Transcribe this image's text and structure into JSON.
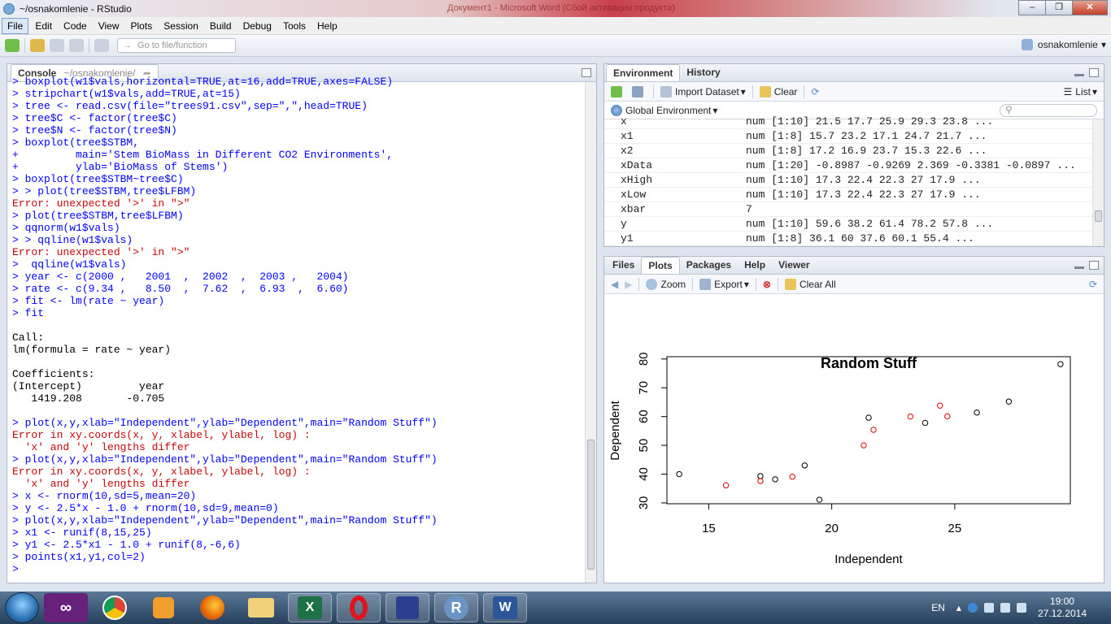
{
  "window": {
    "title": "~/osnakomlenie - RStudio",
    "ghost_title": "Документ1 - Microsoft Word (Сбой активации продукта)"
  },
  "menu": [
    "File",
    "Edit",
    "Code",
    "View",
    "Plots",
    "Session",
    "Build",
    "Debug",
    "Tools",
    "Help"
  ],
  "toolbar": {
    "goto_placeholder": "Go to file/function",
    "user": "osnakomlenie"
  },
  "console": {
    "tab_label": "Console",
    "path": "~/osnakomlenie/",
    "lines": [
      {
        "t": "> boxplot(w1$vals,horizontal=TRUE,at=16,add=TRUE,axes=FALSE)",
        "k": "in"
      },
      {
        "t": "> stripchart(w1$vals,add=TRUE,at=15)",
        "k": "in"
      },
      {
        "t": "> tree <- read.csv(file=\"trees91.csv\",sep=\",\",head=TRUE)",
        "k": "in"
      },
      {
        "t": "> tree$C <- factor(tree$C)",
        "k": "in"
      },
      {
        "t": "> tree$N <- factor(tree$N)",
        "k": "in"
      },
      {
        "t": "> boxplot(tree$STBM,",
        "k": "in"
      },
      {
        "t": "+         main='Stem BioMass in Different CO2 Environments',",
        "k": "in"
      },
      {
        "t": "+         ylab='BioMass of Stems')",
        "k": "in"
      },
      {
        "t": "> boxplot(tree$STBM~tree$C)",
        "k": "in"
      },
      {
        "t": "> > plot(tree$STBM,tree$LFBM)",
        "k": "in"
      },
      {
        "t": "Error: unexpected '>' in \">\"",
        "k": "err"
      },
      {
        "t": "> plot(tree$STBM,tree$LFBM)",
        "k": "in"
      },
      {
        "t": "> qqnorm(w1$vals)",
        "k": "in"
      },
      {
        "t": "> > qqline(w1$vals)",
        "k": "in"
      },
      {
        "t": "Error: unexpected '>' in \">\"",
        "k": "err"
      },
      {
        "t": ">  qqline(w1$vals)",
        "k": "in"
      },
      {
        "t": "> year <- c(2000 ,   2001  ,  2002  ,  2003 ,   2004)",
        "k": "in"
      },
      {
        "t": "> rate <- c(9.34 ,   8.50  ,  7.62  ,  6.93  ,  6.60)",
        "k": "in"
      },
      {
        "t": "> fit <- lm(rate ~ year)",
        "k": "in"
      },
      {
        "t": "> fit",
        "k": "in"
      },
      {
        "t": "",
        "k": "out"
      },
      {
        "t": "Call:",
        "k": "out"
      },
      {
        "t": "lm(formula = rate ~ year)",
        "k": "out"
      },
      {
        "t": "",
        "k": "out"
      },
      {
        "t": "Coefficients:",
        "k": "out"
      },
      {
        "t": "(Intercept)         year  ",
        "k": "out"
      },
      {
        "t": "   1419.208       -0.705  ",
        "k": "out"
      },
      {
        "t": "",
        "k": "out"
      },
      {
        "t": "> plot(x,y,xlab=\"Independent\",ylab=\"Dependent\",main=\"Random Stuff\")",
        "k": "in"
      },
      {
        "t": "Error in xy.coords(x, y, xlabel, ylabel, log) : ",
        "k": "err"
      },
      {
        "t": "  'x' and 'y' lengths differ",
        "k": "err"
      },
      {
        "t": "> plot(x,y,xlab=\"Independent\",ylab=\"Dependent\",main=\"Random Stuff\")",
        "k": "in"
      },
      {
        "t": "Error in xy.coords(x, y, xlabel, ylabel, log) : ",
        "k": "err"
      },
      {
        "t": "  'x' and 'y' lengths differ",
        "k": "err"
      },
      {
        "t": "> x <- rnorm(10,sd=5,mean=20)",
        "k": "in"
      },
      {
        "t": "> y <- 2.5*x - 1.0 + rnorm(10,sd=9,mean=0)",
        "k": "in"
      },
      {
        "t": "> plot(x,y,xlab=\"Independent\",ylab=\"Dependent\",main=\"Random Stuff\")",
        "k": "in"
      },
      {
        "t": "> x1 <- runif(8,15,25)",
        "k": "in"
      },
      {
        "t": "> y1 <- 2.5*x1 - 1.0 + runif(8,-6,6)",
        "k": "in"
      },
      {
        "t": "> points(x1,y1,col=2)",
        "k": "in"
      },
      {
        "t": "> ",
        "k": "in"
      }
    ]
  },
  "environment": {
    "tabs": [
      "Environment",
      "History"
    ],
    "import_label": "Import Dataset",
    "clear_label": "Clear",
    "view_label": "List",
    "scope_label": "Global Environment",
    "rows": [
      {
        "name": "x",
        "value": "num [1:10] 21.5 17.7 25.9 29.3 23.8 ..."
      },
      {
        "name": "x1",
        "value": "num [1:8] 15.7 23.2 17.1 24.7 21.7 ..."
      },
      {
        "name": "x2",
        "value": "num [1:8] 17.2 16.9 23.7 15.3 22.6 ..."
      },
      {
        "name": "xData",
        "value": "num [1:20] -0.8987 -0.9269 2.369 -0.3381 -0.0897 ..."
      },
      {
        "name": "xHigh",
        "value": "num [1:10] 17.3 22.4 22.3 27 17.9 ..."
      },
      {
        "name": "xLow",
        "value": "num [1:10] 17.3 22.4 22.3 27 17.9 ..."
      },
      {
        "name": "xbar",
        "value": "7"
      },
      {
        "name": "y",
        "value": "num [1:10] 59.6 38.2 61.4 78.2 57.8 ..."
      },
      {
        "name": "y1",
        "value": "num [1:8] 36.1 60 37.6 60.1 55.4 ..."
      }
    ]
  },
  "files": {
    "tabs": [
      "Files",
      "Plots",
      "Packages",
      "Help",
      "Viewer"
    ],
    "zoom_label": "Zoom",
    "export_label": "Export",
    "clearall_label": "Clear All"
  },
  "chart_data": {
    "type": "scatter",
    "title": "Random Stuff",
    "xlabel": "Independent",
    "ylabel": "Dependent",
    "xlim": [
      13.3,
      29.7
    ],
    "ylim": [
      29.7,
      80.8
    ],
    "xticks": [
      "15",
      "20",
      "25"
    ],
    "yticks": [
      "30",
      "40",
      "50",
      "60",
      "70",
      "80"
    ],
    "series": [
      {
        "color": "#000000",
        "x": [
          13.8,
          17.1,
          17.7,
          18.9,
          19.5,
          21.5,
          23.8,
          25.9,
          27.2,
          29.3
        ],
        "y": [
          40.0,
          39.3,
          38.2,
          43.0,
          31.1,
          59.6,
          57.8,
          61.4,
          65.2,
          78.2
        ]
      },
      {
        "color": "#dd0000",
        "x": [
          15.7,
          17.1,
          18.4,
          21.3,
          21.7,
          23.2,
          24.4,
          24.7
        ],
        "y": [
          36.1,
          37.6,
          39.1,
          50.0,
          55.4,
          60.0,
          63.8,
          60.1
        ]
      }
    ]
  },
  "taskbar": {
    "lang": "EN",
    "time": "19:00",
    "date": "27.12.2014"
  }
}
